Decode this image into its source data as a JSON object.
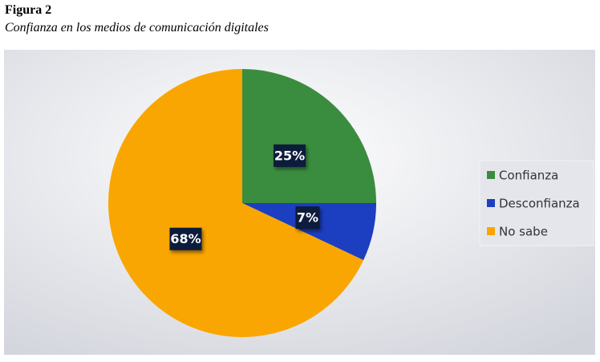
{
  "chart_data": {
    "type": "pie",
    "figure_label": "Figura 2",
    "title": "Confianza en los medios de comunicación digitales",
    "categories": [
      "Confianza",
      "Desconfianza",
      "No sabe"
    ],
    "values": [
      25,
      7,
      68
    ],
    "value_labels": [
      "25%",
      "7%",
      "68%"
    ],
    "colors": [
      "#3a8d3f",
      "#1b3fc0",
      "#f9a602"
    ]
  }
}
